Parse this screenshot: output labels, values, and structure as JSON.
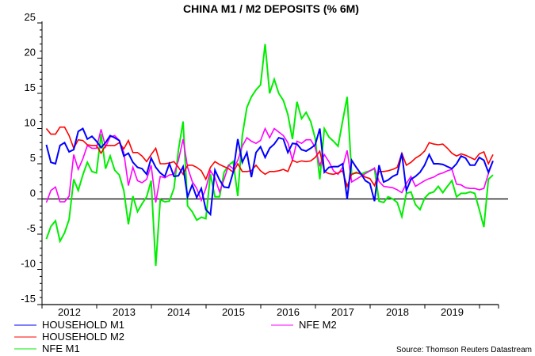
{
  "chart_data": {
    "type": "line",
    "title": "CHINA M1 / M2 DEPOSITS (% 6M)",
    "xlabel": "",
    "ylabel": "",
    "x_start": "2012-01",
    "frequency": "monthly",
    "ylim": [
      -15,
      25
    ],
    "yticks": [
      "25",
      "20",
      "15",
      "10",
      "5",
      "0",
      "-5",
      "-10",
      "-15"
    ],
    "ytick_values": [
      25,
      20,
      15,
      10,
      5,
      0,
      -5,
      -10,
      -15
    ],
    "xtick_labels": [
      "2012",
      "2013",
      "2014",
      "2015",
      "2016",
      "2017",
      "2018",
      "2019"
    ],
    "zero_line": true,
    "grid": false,
    "legend_placement": "bottom",
    "source": "Source: Thomson Reuters Datastream",
    "series": [
      {
        "name": "HOUSEHOLD M1",
        "color": "#0000ff",
        "values": [
          7.7,
          5.2,
          5.0,
          7.6,
          8.0,
          6.7,
          7.0,
          9.6,
          10.0,
          8.5,
          8.9,
          8.2,
          7.3,
          8.0,
          9.0,
          8.7,
          8.3,
          6.1,
          6.5,
          5.2,
          4.5,
          4.3,
          3.5,
          5.8,
          4.5,
          3.7,
          3.2,
          5.0,
          3.2,
          3.3,
          4.6,
          0.3,
          2.0,
          0.2,
          1.5,
          -1.5,
          -2.2,
          4.1,
          2.7,
          1.7,
          1.6,
          3.8,
          8.5,
          5.2,
          6.6,
          3.1,
          6.6,
          7.4,
          5.9,
          7.2,
          7.8,
          8.7,
          8.5,
          6.6,
          7.9,
          7.8,
          7.0,
          6.8,
          7.2,
          7.7,
          10.0,
          3.8,
          4.5,
          4.6,
          4.6,
          5.0,
          0.0,
          5.5,
          4.5,
          3.6,
          2.6,
          2.2,
          -0.3,
          4.8,
          2.4,
          2.7,
          3.2,
          3.5,
          6.5,
          1.2,
          2.8,
          3.2,
          3.8,
          4.8,
          6.3,
          5.0,
          5.0,
          4.9,
          4.6,
          4.3,
          5.0,
          6.1,
          5.8,
          4.8,
          4.8,
          5.9,
          5.5,
          3.8,
          5.4
        ]
      },
      {
        "name": "HOUSEHOLD M2",
        "color": "#ff0000",
        "values": [
          10.0,
          9.2,
          9.2,
          10.2,
          10.2,
          9.0,
          7.2,
          8.4,
          8.3,
          7.7,
          7.6,
          7.6,
          6.5,
          7.6,
          7.6,
          7.6,
          8.0,
          7.1,
          8.3,
          6.6,
          6.6,
          6.1,
          5.3,
          6.3,
          7.2,
          5.0,
          5.0,
          5.1,
          5.3,
          4.5,
          3.5,
          4.8,
          4.8,
          4.5,
          4.0,
          2.8,
          4.5,
          5.3,
          4.9,
          4.6,
          4.3,
          3.8,
          5.0,
          3.9,
          3.9,
          4.0,
          4.8,
          4.0,
          3.5,
          3.9,
          3.9,
          4.0,
          4.2,
          3.9,
          5.5,
          5.2,
          5.4,
          5.3,
          5.4,
          5.9,
          6.8,
          3.9,
          3.6,
          3.5,
          3.7,
          4.0,
          1.8,
          3.5,
          3.7,
          3.6,
          3.1,
          2.9,
          1.9,
          3.9,
          3.9,
          4.0,
          4.2,
          4.5,
          6.5,
          4.8,
          5.2,
          5.8,
          6.2,
          6.8,
          8.0,
          7.8,
          7.7,
          7.8,
          7.2,
          6.5,
          6.1,
          6.4,
          6.2,
          5.9,
          5.6,
          6.4,
          6.7,
          5.0,
          6.3
        ]
      },
      {
        "name": "NFE M1",
        "color": "#00ee00",
        "values": [
          -5.7,
          -3.9,
          -3.1,
          -6.0,
          -4.8,
          -2.9,
          2.8,
          1.2,
          3.4,
          5.2,
          3.9,
          3.7,
          9.2,
          4.3,
          6.1,
          4.1,
          3.4,
          1.2,
          -3.6,
          0.4,
          -1.8,
          -0.7,
          0.3,
          2.6,
          -9.5,
          -0.1,
          -0.4,
          -0.3,
          1.5,
          7.0,
          11.0,
          -1.0,
          -1.8,
          -3.0,
          -2.6,
          -2.8,
          3.5,
          0.3,
          0.3,
          3.8,
          4.8,
          5.3,
          0.4,
          9.0,
          13.0,
          14.5,
          15.5,
          16.2,
          22.0,
          15.0,
          17.0,
          15.0,
          14.0,
          12.0,
          8.5,
          13.8,
          11.4,
          12.3,
          11.0,
          8.6,
          2.8,
          10.0,
          8.8,
          8.2,
          7.5,
          11.0,
          14.5,
          3.5,
          3.8,
          3.5,
          3.8,
          4.0,
          4.3,
          -0.3,
          -0.5,
          0.3,
          0.0,
          -0.5,
          -2.5,
          0.8,
          1.0,
          -0.8,
          -1.5,
          0.1,
          0.8,
          1.0,
          1.8,
          0.9,
          1.8,
          2.6,
          0.3,
          0.8,
          0.8,
          1.0,
          0.8,
          -1.5,
          -4.0,
          2.8,
          3.4
        ]
      },
      {
        "name": "NFE M2",
        "color": "#ff00ff",
        "values": [
          -0.5,
          1.2,
          1.7,
          -0.4,
          -0.4,
          0.4,
          6.3,
          4.2,
          5.7,
          7.6,
          7.2,
          7.2,
          9.9,
          7.4,
          8.8,
          9.0,
          8.3,
          6.6,
          1.9,
          4.5,
          2.6,
          2.3,
          2.8,
          4.8,
          -0.5,
          3.2,
          3.0,
          3.4,
          3.5,
          5.5,
          8.5,
          4.5,
          2.5,
          1.5,
          -0.2,
          1.5,
          4.0,
          3.0,
          1.0,
          2.8,
          4.8,
          4.3,
          5.5,
          7.5,
          8.7,
          8.2,
          7.9,
          8.3,
          10.0,
          8.7,
          10.0,
          9.5,
          9.0,
          8.0,
          5.5,
          8.2,
          7.9,
          8.4,
          8.4,
          7.3,
          4.8,
          6.3,
          5.3,
          4.0,
          3.5,
          4.5,
          6.9,
          2.4,
          2.8,
          3.2,
          3.6,
          4.0,
          4.4,
          2.5,
          1.8,
          1.7,
          1.6,
          1.3,
          0.9,
          2.2,
          3.2,
          1.8,
          2.2,
          2.6,
          2.9,
          3.1,
          3.5,
          3.7,
          4.0,
          4.2,
          2.1,
          2.0,
          1.6,
          1.5,
          1.5,
          1.3,
          1.5,
          3.6,
          5.4
        ]
      }
    ]
  }
}
